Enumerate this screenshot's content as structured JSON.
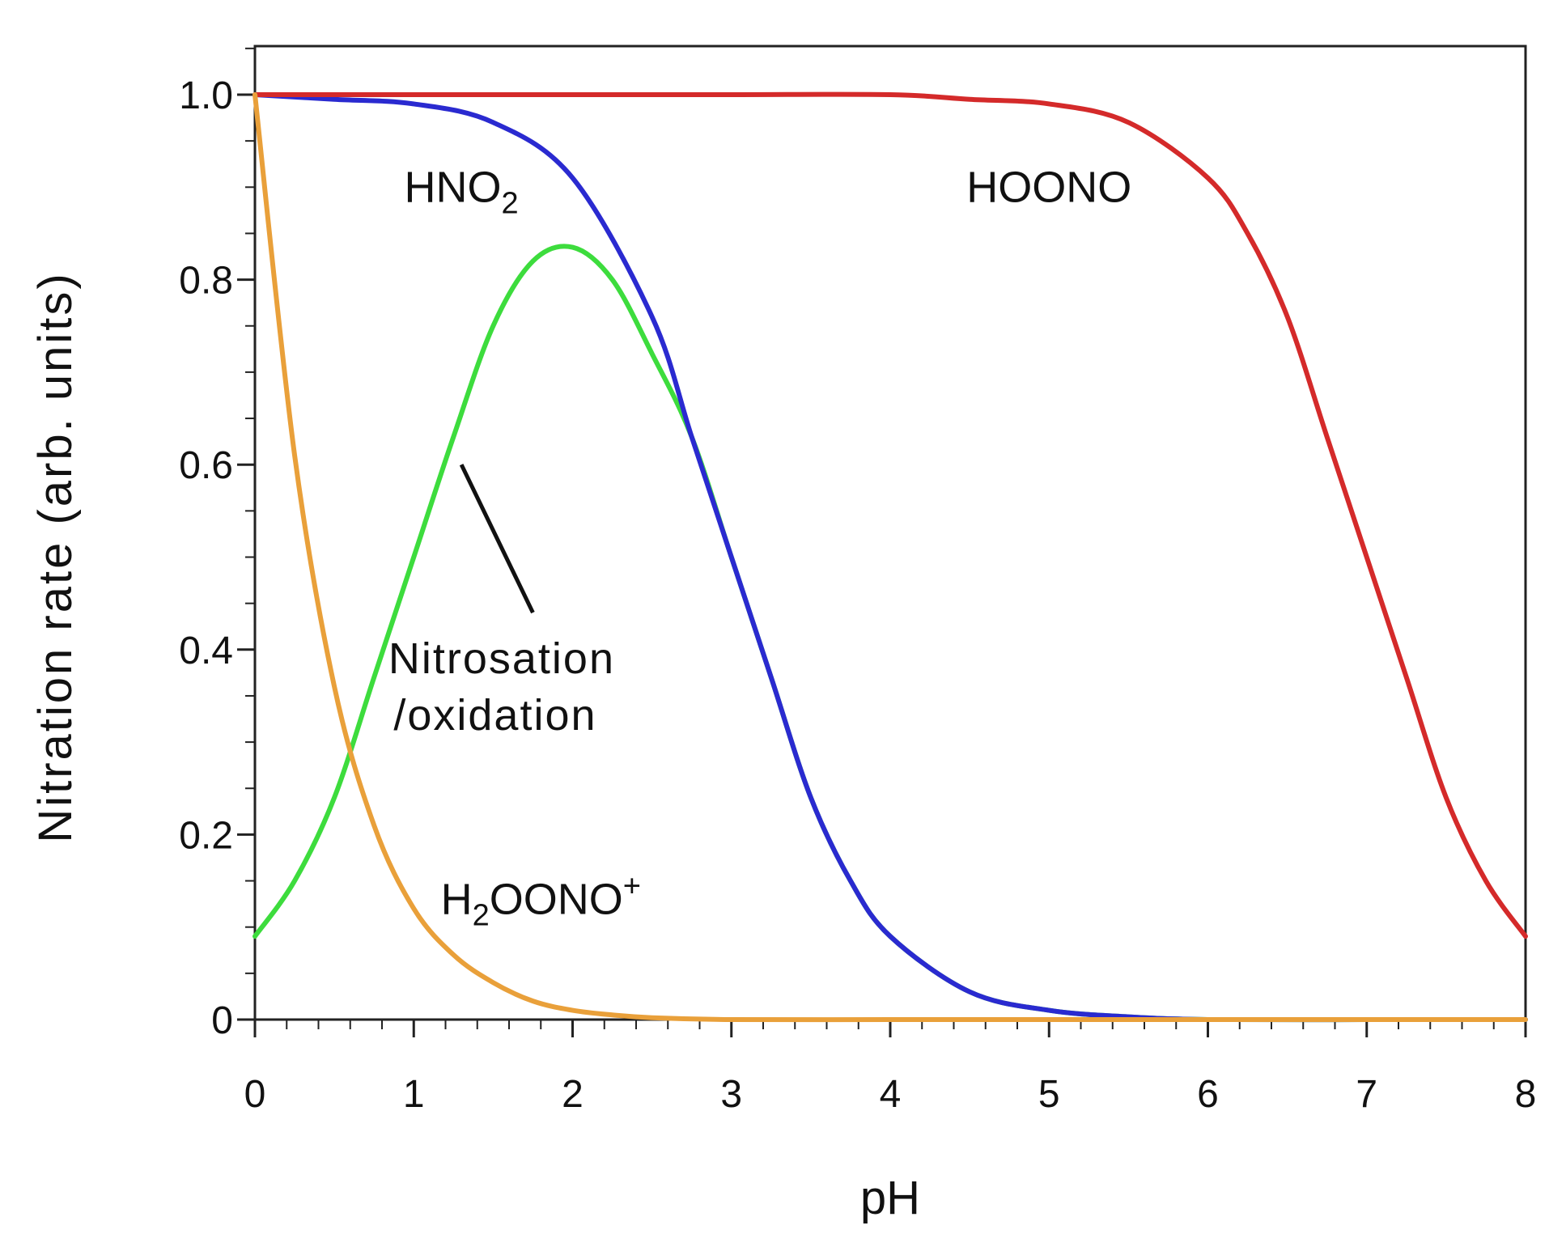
{
  "chart_data": {
    "type": "line",
    "title": "",
    "xlabel": "pH",
    "ylabel": "Nitration rate (arb. units)",
    "xlim": [
      0,
      8
    ],
    "ylim": [
      0,
      1.05
    ],
    "grid": false,
    "legend": "none",
    "x_ticks": [
      0,
      1,
      2,
      3,
      4,
      5,
      6,
      7,
      8
    ],
    "x_tick_labels": [
      "0",
      "1",
      "2",
      "3",
      "4",
      "5",
      "6",
      "7",
      "8"
    ],
    "y_ticks": [
      0,
      0.2,
      0.4,
      0.6,
      0.8,
      1.0
    ],
    "y_tick_labels": [
      "0",
      "0.2",
      "0.4",
      "0.6",
      "0.8",
      "1.0"
    ],
    "series": [
      {
        "name": "HOONO",
        "color": "#d42a2a",
        "x": [
          0,
          1,
          2,
          3,
          4,
          4.5,
          5,
          5.5,
          6,
          6.25,
          6.5,
          6.75,
          7,
          7.25,
          7.5,
          7.75,
          8
        ],
        "y": [
          1.0,
          1.0,
          1.0,
          1.0,
          1.0,
          0.995,
          0.99,
          0.97,
          0.91,
          0.85,
          0.76,
          0.63,
          0.5,
          0.37,
          0.24,
          0.15,
          0.09
        ]
      },
      {
        "name": "HNO2",
        "color": "#2a2ad0",
        "x": [
          0,
          0.5,
          1,
          1.5,
          2,
          2.5,
          2.75,
          3,
          3.25,
          3.5,
          3.75,
          4,
          4.5,
          5,
          5.5,
          6,
          7,
          8
        ],
        "y": [
          1.0,
          0.995,
          0.99,
          0.97,
          0.91,
          0.76,
          0.63,
          0.5,
          0.37,
          0.24,
          0.15,
          0.09,
          0.03,
          0.01,
          0.003,
          0.0,
          0.0,
          0.0
        ]
      },
      {
        "name": "Nitrosation/oxidation",
        "color": "#3ddc3d",
        "x": [
          0,
          0.25,
          0.5,
          0.75,
          1,
          1.25,
          1.5,
          1.75,
          2,
          2.25,
          2.5,
          2.75,
          3,
          3.25,
          3.5,
          3.75,
          4,
          4.5,
          5,
          5.5,
          6,
          7,
          8
        ],
        "y": [
          0.09,
          0.15,
          0.24,
          0.37,
          0.5,
          0.63,
          0.75,
          0.82,
          0.835,
          0.8,
          0.72,
          0.63,
          0.5,
          0.37,
          0.24,
          0.15,
          0.09,
          0.03,
          0.01,
          0.003,
          0.0,
          0.0,
          0.0
        ]
      },
      {
        "name": "H2OONO+",
        "color": "#e9a03a",
        "x": [
          0,
          0.25,
          0.5,
          0.75,
          1,
          1.25,
          1.5,
          1.75,
          2,
          2.25,
          2.5,
          3,
          4,
          5,
          6,
          7,
          8
        ],
        "y": [
          1.0,
          0.61,
          0.36,
          0.21,
          0.12,
          0.07,
          0.04,
          0.02,
          0.01,
          0.005,
          0.002,
          0.0,
          0.0,
          0.0,
          0.0,
          0.0,
          0.0
        ]
      }
    ],
    "annotations": [
      {
        "text": "HNO",
        "sub": "2",
        "sup": "",
        "x": 1.3,
        "y": 0.9
      },
      {
        "text": "HOONO",
        "sub": "",
        "sup": "",
        "x": 5.0,
        "y": 0.9
      },
      {
        "lines": [
          "Nitrosation",
          "/oxidation"
        ],
        "x": 1.35,
        "y": 0.39
      },
      {
        "text": "H",
        "sub": "2",
        "after": "OONO",
        "sup": "+",
        "x": 1.8,
        "y": 0.13
      }
    ],
    "pointer_line": {
      "from": [
        1.3,
        0.6
      ],
      "to": [
        1.75,
        0.44
      ]
    }
  }
}
